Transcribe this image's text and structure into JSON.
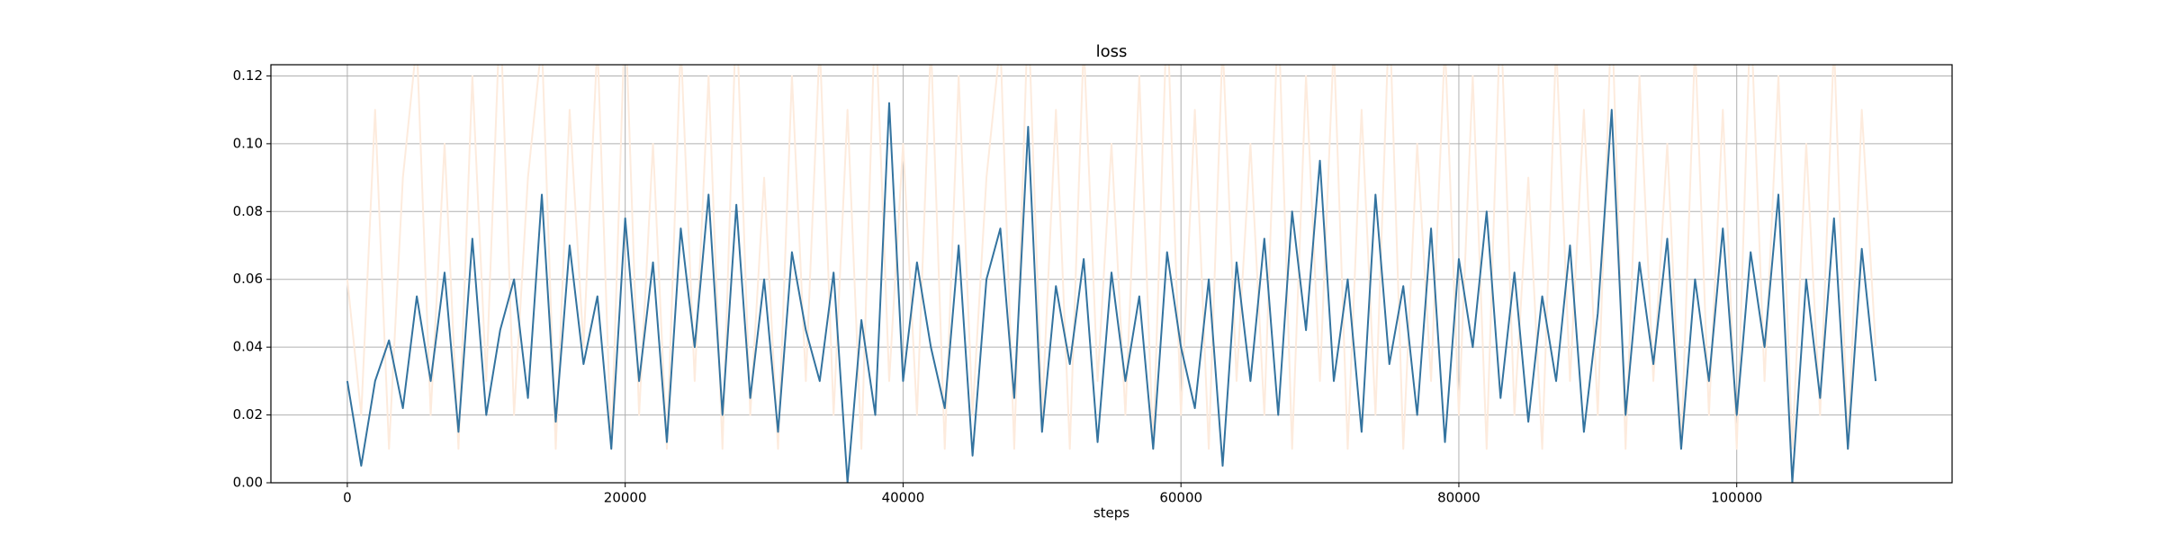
{
  "chart_data": {
    "type": "line",
    "title": "loss",
    "xlabel": "steps",
    "x": [
      0,
      1000,
      2000,
      3000,
      4000,
      5000,
      6000,
      7000,
      8000,
      9000,
      10000,
      11000,
      12000,
      13000,
      14000,
      15000,
      16000,
      17000,
      18000,
      19000,
      20000,
      21000,
      22000,
      23000,
      24000,
      25000,
      26000,
      27000,
      28000,
      29000,
      30000,
      31000,
      32000,
      33000,
      34000,
      35000,
      36000,
      37000,
      38000,
      39000,
      40000,
      41000,
      42000,
      43000,
      44000,
      45000,
      46000,
      47000,
      48000,
      49000,
      50000,
      51000,
      52000,
      53000,
      54000,
      55000,
      56000,
      57000,
      58000,
      59000,
      60000,
      61000,
      62000,
      63000,
      64000,
      65000,
      66000,
      67000,
      68000,
      69000,
      70000,
      71000,
      72000,
      73000,
      74000,
      75000,
      76000,
      77000,
      78000,
      79000,
      80000,
      81000,
      82000,
      83000,
      84000,
      85000,
      86000,
      87000,
      88000,
      89000,
      90000,
      91000,
      92000,
      93000,
      94000,
      95000,
      96000,
      97000,
      98000,
      99000,
      100000,
      101000,
      102000,
      103000,
      104000,
      105000,
      106000,
      107000,
      108000,
      109000,
      110000
    ],
    "series": [
      {
        "color": "#fdebdd",
        "values": [
          0.06,
          0.02,
          0.11,
          0.01,
          0.09,
          0.13,
          0.02,
          0.1,
          0.01,
          0.12,
          0.03,
          0.14,
          0.02,
          0.09,
          0.13,
          0.01,
          0.11,
          0.04,
          0.13,
          0.01,
          0.14,
          0.02,
          0.1,
          0.01,
          0.13,
          0.03,
          0.12,
          0.01,
          0.14,
          0.02,
          0.09,
          0.01,
          0.12,
          0.03,
          0.13,
          0.02,
          0.11,
          0.01,
          0.14,
          0.03,
          0.1,
          0.02,
          0.13,
          0.01,
          0.12,
          0.02,
          0.09,
          0.13,
          0.01,
          0.14,
          0.02,
          0.11,
          0.01,
          0.13,
          0.03,
          0.1,
          0.02,
          0.12,
          0.01,
          0.14,
          0.02,
          0.11,
          0.01,
          0.13,
          0.03,
          0.1,
          0.02,
          0.14,
          0.01,
          0.12,
          0.03,
          0.13,
          0.01,
          0.11,
          0.02,
          0.14,
          0.01,
          0.1,
          0.03,
          0.13,
          0.02,
          0.12,
          0.01,
          0.14,
          0.02,
          0.09,
          0.01,
          0.13,
          0.03,
          0.11,
          0.02,
          0.14,
          0.01,
          0.12,
          0.03,
          0.1,
          0.01,
          0.13,
          0.02,
          0.11,
          0.01,
          0.14,
          0.03,
          0.12,
          0.01,
          0.1,
          0.02,
          0.13,
          0.01,
          0.11,
          0.04
        ]
      },
      {
        "color": "#33739f",
        "values": [
          0.03,
          0.005,
          0.03,
          0.042,
          0.022,
          0.055,
          0.03,
          0.062,
          0.015,
          0.072,
          0.02,
          0.045,
          0.06,
          0.025,
          0.085,
          0.018,
          0.07,
          0.035,
          0.055,
          0.01,
          0.078,
          0.03,
          0.065,
          0.012,
          0.075,
          0.04,
          0.085,
          0.02,
          0.082,
          0.025,
          0.06,
          0.015,
          0.068,
          0.045,
          0.03,
          0.062,
          0.0,
          0.048,
          0.02,
          0.112,
          0.03,
          0.065,
          0.04,
          0.022,
          0.07,
          0.008,
          0.06,
          0.075,
          0.025,
          0.105,
          0.015,
          0.058,
          0.035,
          0.066,
          0.012,
          0.062,
          0.03,
          0.055,
          0.01,
          0.068,
          0.04,
          0.022,
          0.06,
          0.005,
          0.065,
          0.03,
          0.072,
          0.02,
          0.08,
          0.045,
          0.095,
          0.03,
          0.06,
          0.015,
          0.085,
          0.035,
          0.058,
          0.02,
          0.075,
          0.012,
          0.066,
          0.04,
          0.08,
          0.025,
          0.062,
          0.018,
          0.055,
          0.03,
          0.07,
          0.015,
          0.05,
          0.11,
          0.02,
          0.065,
          0.035,
          0.072,
          0.01,
          0.06,
          0.03,
          0.075,
          0.02,
          0.068,
          0.04,
          0.085,
          0.0,
          0.06,
          0.025,
          0.078,
          0.01,
          0.069,
          0.03
        ]
      }
    ],
    "xlim": [
      -5500,
      115500
    ],
    "xticks": [
      0,
      20000,
      40000,
      60000,
      80000,
      100000
    ],
    "ylim": [
      0,
      0.1233
    ],
    "yticks": [
      {
        "value": 0,
        "label": "0.00"
      },
      0.02,
      0.04,
      0.06,
      0.08,
      {
        "value": 0.1,
        "label": "0.10"
      },
      0.12
    ],
    "grid": true
  }
}
